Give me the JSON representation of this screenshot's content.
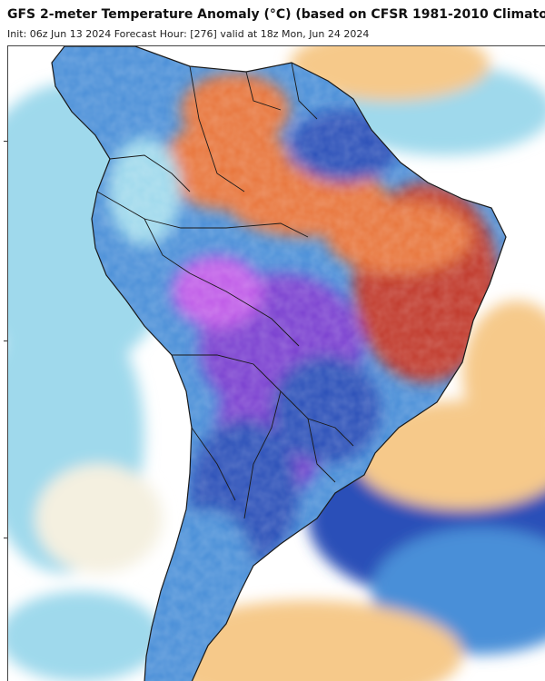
{
  "header": {
    "title": "GFS 2-meter Temperature Anomaly (°C) (based on CFSR 1981-2010 Climatolo",
    "subtitle": "Init: 06z Jun 13 2024   Forecast Hour: [276]   valid at 18z Mon, Jun 24 2024"
  },
  "map": {
    "region": "South America",
    "colors": {
      "strong_warm": "#c0392b",
      "warm": "#e8743b",
      "mild_warm": "#f6c98a",
      "near_normal": "#f4f0e0",
      "mild_cold": "#9fd9ec",
      "cold": "#4a8fd8",
      "strong_cold": "#2c4fb8",
      "extreme_cold": "#7a3fd0",
      "record_cold": "#c05ce8"
    }
  }
}
